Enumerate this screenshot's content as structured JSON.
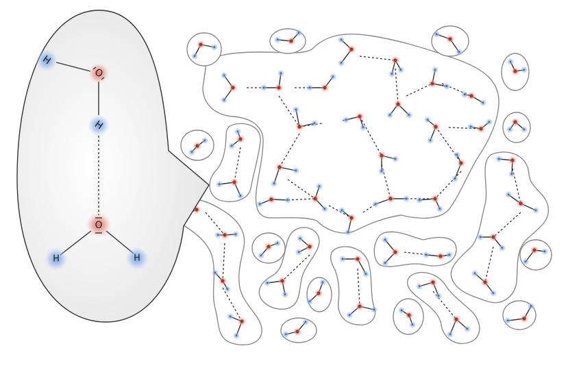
{
  "zoom": {
    "top_water": {
      "oxygen": "O",
      "hydrogens": [
        "H",
        "H"
      ]
    },
    "bottom_water": {
      "oxygen": "O",
      "hydrogens": [
        "H",
        "H"
      ]
    }
  },
  "small_atom_labels": {
    "oxygen": "O",
    "hydrogen": "H"
  },
  "colors": {
    "oxygen_glow": "#e0705f",
    "hydrogen_glow": "#6b9be0",
    "oxygen_atom": "#b8473a",
    "callout_fill": "#f2f2f2",
    "outline": "#8a8a8a",
    "bond": "#333333"
  }
}
